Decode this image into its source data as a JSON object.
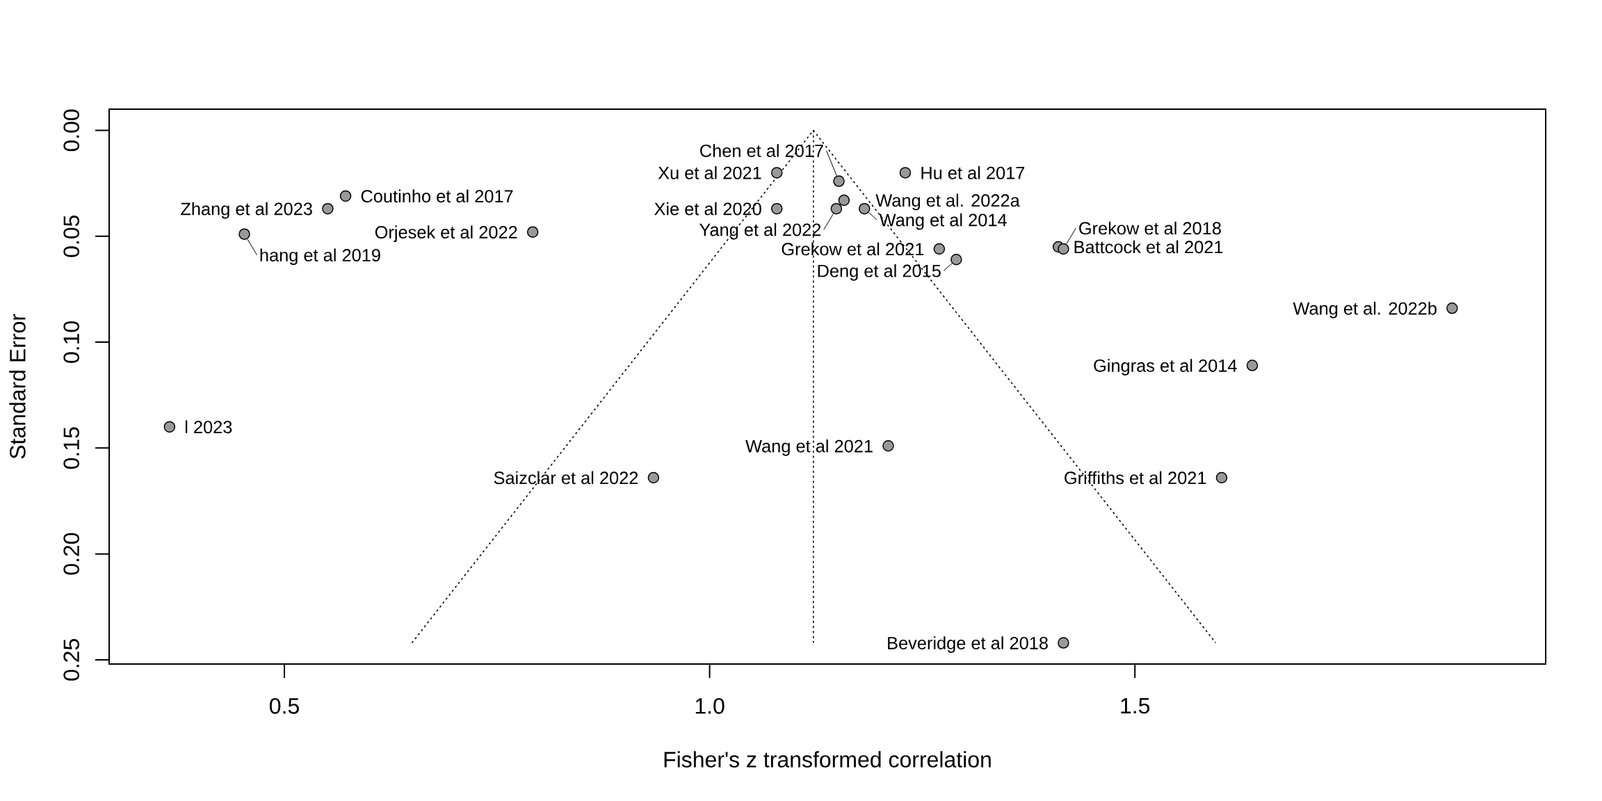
{
  "chart_data": {
    "type": "scatter",
    "xlabel": "Fisher's z transformed correlation",
    "ylabel": "Standard Error",
    "xlim": [
      0.294,
      1.983
    ],
    "ylim": [
      0.252,
      -0.01
    ],
    "xticks": [
      {
        "value": 0.5,
        "label": "0.5"
      },
      {
        "value": 1,
        "label": "1.0"
      },
      {
        "value": 1.5,
        "label": "1.5"
      }
    ],
    "yticks": [
      {
        "value": 0,
        "label": "0.00"
      },
      {
        "value": 0.05,
        "label": "0.05"
      },
      {
        "value": 0.1,
        "label": "0.10"
      },
      {
        "value": 0.15,
        "label": "0.15"
      },
      {
        "value": 0.2,
        "label": "0.20"
      },
      {
        "value": 0.25,
        "label": "0.25"
      }
    ],
    "series": [
      {
        "type": "line",
        "color": "#000000",
        "line_style": "dotted",
        "marker": "none",
        "x": [
          0.65,
          1.122,
          1.595
        ],
        "values": [
          0.242,
          0,
          0.242
        ]
      },
      {
        "type": "line",
        "color": "#000000",
        "line_style": "dotted",
        "marker": "none",
        "x": [
          1.122,
          1.122
        ],
        "values": [
          0,
          0.242
        ]
      },
      {
        "color": "#999999",
        "marker": "circle",
        "x": [
          1.079,
          1.23,
          1.152,
          0.572,
          1.158,
          0.551,
          1.079,
          1.149,
          1.182,
          0.792,
          0.453,
          1.41,
          1.27,
          1.416,
          1.29,
          1.873,
          1.638,
          0.365,
          1.21,
          0.934,
          1.602,
          1.416
        ],
        "values": [
          0.02,
          0.02,
          0.024,
          0.031,
          0.033,
          0.037,
          0.037,
          0.037,
          0.037,
          0.048,
          0.049,
          0.055,
          0.056,
          0.056,
          0.061,
          0.084,
          0.111,
          0.14,
          0.149,
          0.164,
          0.164,
          0.242
        ]
      }
    ],
    "annotations": [
      {
        "text": "Xu et al 2021",
        "x": 1.079,
        "y": 0.02
      },
      {
        "text": "Hu et al 2017",
        "x": 1.23,
        "y": 0.02
      },
      {
        "text": "Chen et al 2017",
        "x": 1.152,
        "y": 0.024
      },
      {
        "text": "Coutinho et al 2017",
        "x": 0.572,
        "y": 0.031
      },
      {
        "text": "Wang et al. 2022a",
        "x": 1.158,
        "y": 0.033
      },
      {
        "text": "Zhang et al 2023",
        "x": 0.551,
        "y": 0.037
      },
      {
        "text": "Xie et al 2020",
        "x": 1.079,
        "y": 0.037
      },
      {
        "text": "Yang et al 2022",
        "x": 1.149,
        "y": 0.037
      },
      {
        "text": "Wang et al 2014",
        "x": 1.182,
        "y": 0.037
      },
      {
        "text": "Orjesek et al 2022",
        "x": 0.792,
        "y": 0.048
      },
      {
        "text": "hang et al 2019",
        "x": 0.453,
        "y": 0.049
      },
      {
        "text": "Battcock et al 2021",
        "x": 1.41,
        "y": 0.055
      },
      {
        "text": "Grekow et al 2021",
        "x": 1.27,
        "y": 0.056
      },
      {
        "text": "Grekow et al 2018",
        "x": 1.416,
        "y": 0.056
      },
      {
        "text": "Deng et al 2015",
        "x": 1.29,
        "y": 0.061
      },
      {
        "text": "Wang et al. 2022b",
        "x": 1.873,
        "y": 0.084
      },
      {
        "text": "Gingras et al 2014",
        "x": 1.638,
        "y": 0.111
      },
      {
        "text": "l 2023",
        "x": 0.365,
        "y": 0.14
      },
      {
        "text": "Wang et al 2021",
        "x": 1.21,
        "y": 0.149
      },
      {
        "text": "Saizclar et al 2022",
        "x": 0.934,
        "y": 0.164
      },
      {
        "text": "Griffiths et al 2021",
        "x": 1.602,
        "y": 0.164
      },
      {
        "text": "Beveridge et al 2018",
        "x": 1.416,
        "y": 0.242
      }
    ]
  }
}
